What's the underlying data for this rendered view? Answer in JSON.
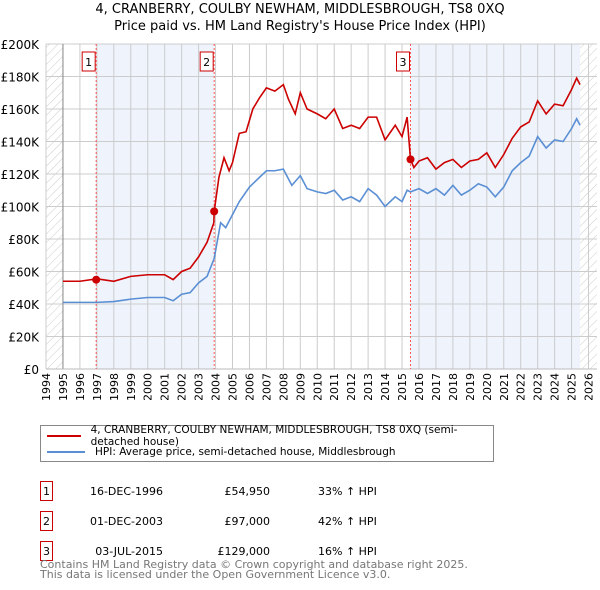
{
  "chart_data": {
    "type": "line",
    "title": "4, CRANBERRY, COULBY NEWHAM, MIDDLESBROUGH, TS8 0XQ",
    "subtitle": "Price paid vs. HM Land Registry's House Price Index (HPI)",
    "xlim": [
      1994,
      2026.5
    ],
    "ylim": [
      0,
      200000
    ],
    "x_ticks": [
      1994,
      1995,
      1996,
      1997,
      1998,
      1999,
      2000,
      2001,
      2002,
      2003,
      2004,
      2005,
      2006,
      2007,
      2008,
      2009,
      2010,
      2011,
      2012,
      2013,
      2014,
      2015,
      2016,
      2017,
      2018,
      2019,
      2020,
      2021,
      2022,
      2023,
      2024,
      2025,
      2026
    ],
    "y_ticks": [
      {
        "v": 0,
        "label": "£0"
      },
      {
        "v": 20000,
        "label": "£20K"
      },
      {
        "v": 40000,
        "label": "£40K"
      },
      {
        "v": 60000,
        "label": "£60K"
      },
      {
        "v": 80000,
        "label": "£80K"
      },
      {
        "v": 100000,
        "label": "£100K"
      },
      {
        "v": 120000,
        "label": "£120K"
      },
      {
        "v": 140000,
        "label": "£140K"
      },
      {
        "v": 160000,
        "label": "£160K"
      },
      {
        "v": 180000,
        "label": "£180K"
      },
      {
        "v": 200000,
        "label": "£200K"
      }
    ],
    "grid": true,
    "series": [
      {
        "name": "4, CRANBERRY, COULBY NEWHAM, MIDDLESBROUGH, TS8 0XQ (semi-detached house)",
        "color": "#cc0000",
        "points": [
          [
            1995,
            54
          ],
          [
            1996,
            54
          ],
          [
            1997,
            55.5
          ],
          [
            1998,
            54
          ],
          [
            1999,
            57
          ],
          [
            2000,
            58
          ],
          [
            2001,
            58
          ],
          [
            2001.5,
            55
          ],
          [
            2002,
            60
          ],
          [
            2002.5,
            62
          ],
          [
            2003,
            69
          ],
          [
            2003.5,
            78
          ],
          [
            2003.9,
            90
          ],
          [
            2003.92,
            97
          ],
          [
            2004.2,
            118
          ],
          [
            2004.5,
            130
          ],
          [
            2004.8,
            122
          ],
          [
            2005,
            127
          ],
          [
            2005.4,
            145
          ],
          [
            2005.8,
            146
          ],
          [
            2006.2,
            160
          ],
          [
            2006.6,
            167
          ],
          [
            2007,
            173
          ],
          [
            2007.5,
            171
          ],
          [
            2008,
            175
          ],
          [
            2008.3,
            166
          ],
          [
            2008.7,
            157
          ],
          [
            2009,
            170
          ],
          [
            2009.4,
            160
          ],
          [
            2010,
            157
          ],
          [
            2010.5,
            154
          ],
          [
            2011,
            160
          ],
          [
            2011.5,
            148
          ],
          [
            2012,
            150
          ],
          [
            2012.5,
            148
          ],
          [
            2013,
            155
          ],
          [
            2013.5,
            155
          ],
          [
            2014,
            141
          ],
          [
            2014.6,
            150
          ],
          [
            2015,
            143
          ],
          [
            2015.3,
            155
          ],
          [
            2015.5,
            129
          ],
          [
            2015.7,
            124
          ],
          [
            2016,
            128
          ],
          [
            2016.5,
            130
          ],
          [
            2017,
            123
          ],
          [
            2017.5,
            127
          ],
          [
            2018,
            129
          ],
          [
            2018.5,
            124
          ],
          [
            2019,
            128
          ],
          [
            2019.5,
            129
          ],
          [
            2020,
            133
          ],
          [
            2020.5,
            124
          ],
          [
            2021,
            132
          ],
          [
            2021.5,
            142
          ],
          [
            2022,
            149
          ],
          [
            2022.5,
            152
          ],
          [
            2023,
            165
          ],
          [
            2023.5,
            157
          ],
          [
            2024,
            163
          ],
          [
            2024.5,
            162
          ],
          [
            2025,
            172
          ],
          [
            2025.3,
            179
          ],
          [
            2025.5,
            175
          ]
        ]
      },
      {
        "name": "HPI: Average price, semi-detached house, Middlesbrough",
        "color": "#5b8fd4",
        "points": [
          [
            1995,
            41
          ],
          [
            1997,
            41
          ],
          [
            1998,
            41.5
          ],
          [
            1999,
            43
          ],
          [
            2000,
            44
          ],
          [
            2001,
            44
          ],
          [
            2001.5,
            42
          ],
          [
            2002,
            46
          ],
          [
            2002.5,
            47
          ],
          [
            2003,
            53
          ],
          [
            2003.5,
            57
          ],
          [
            2003.92,
            68
          ],
          [
            2004.3,
            90
          ],
          [
            2004.6,
            87
          ],
          [
            2005,
            95
          ],
          [
            2005.4,
            103
          ],
          [
            2006,
            112
          ],
          [
            2006.6,
            118
          ],
          [
            2007,
            122
          ],
          [
            2007.5,
            122
          ],
          [
            2008,
            123
          ],
          [
            2008.5,
            113
          ],
          [
            2009,
            119
          ],
          [
            2009.4,
            111
          ],
          [
            2010,
            109
          ],
          [
            2010.5,
            108
          ],
          [
            2011,
            110
          ],
          [
            2011.5,
            104
          ],
          [
            2012,
            106
          ],
          [
            2012.5,
            103
          ],
          [
            2013,
            111
          ],
          [
            2013.5,
            107
          ],
          [
            2014,
            100
          ],
          [
            2014.6,
            106
          ],
          [
            2015,
            103
          ],
          [
            2015.3,
            110
          ],
          [
            2015.5,
            109
          ],
          [
            2016,
            111
          ],
          [
            2016.5,
            108
          ],
          [
            2017,
            111
          ],
          [
            2017.5,
            107
          ],
          [
            2018,
            113
          ],
          [
            2018.5,
            107
          ],
          [
            2019,
            110
          ],
          [
            2019.5,
            114
          ],
          [
            2020,
            112
          ],
          [
            2020.5,
            106
          ],
          [
            2021,
            112
          ],
          [
            2021.5,
            122
          ],
          [
            2022,
            127
          ],
          [
            2022.5,
            131
          ],
          [
            2023,
            143
          ],
          [
            2023.5,
            136
          ],
          [
            2024,
            141
          ],
          [
            2024.5,
            140
          ],
          [
            2025,
            148
          ],
          [
            2025.3,
            154
          ],
          [
            2025.5,
            150
          ]
        ]
      }
    ],
    "value_unit": "thousand GBP",
    "sales": [
      {
        "id": "1",
        "x": 1996.96,
        "value": 54950,
        "date": "16-DEC-1996",
        "price": "£54,950",
        "hpi": "33% ↑ HPI"
      },
      {
        "id": "2",
        "x": 2003.92,
        "value": 97000,
        "date": "01-DEC-2003",
        "price": "£97,000",
        "hpi": "42% ↑ HPI"
      },
      {
        "id": "3",
        "x": 2015.5,
        "value": 129000,
        "date": "03-JUL-2015",
        "price": "£129,000",
        "hpi": "16% ↑ HPI"
      }
    ],
    "hatched_before": 1995,
    "hatched_after": 2025.5,
    "legend_placement": "below"
  },
  "footer": {
    "line1": "Contains HM Land Registry data © Crown copyright and database right 2025.",
    "line2": "This data is licensed under the Open Government Licence v3.0."
  }
}
